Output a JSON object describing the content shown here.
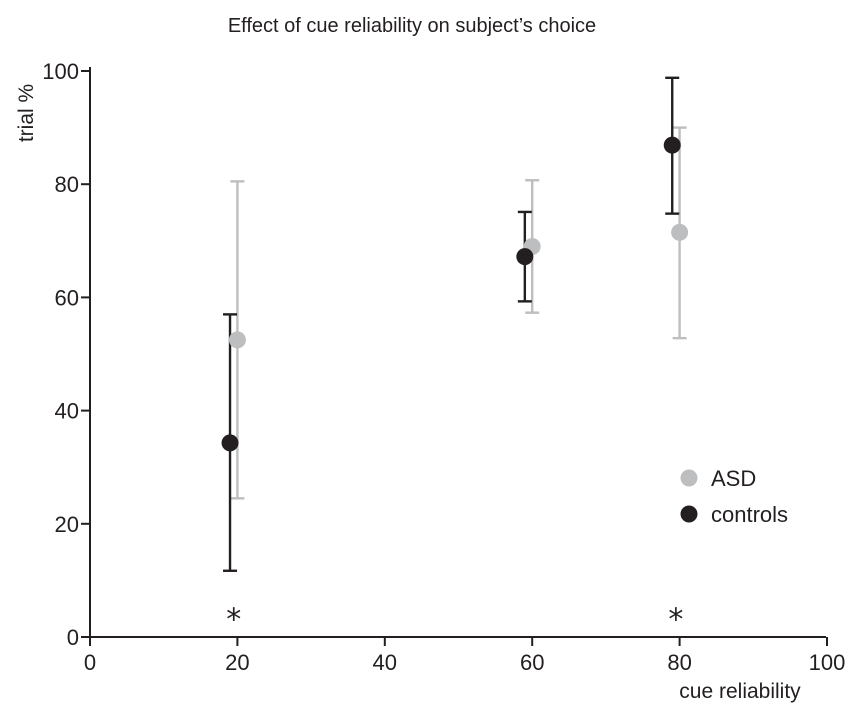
{
  "chart_data": {
    "type": "scatter",
    "title": "Effect of cue reliability on subject’s choice",
    "xlabel": "cue reliability",
    "ylabel": "trial %",
    "xlim": [
      0,
      100
    ],
    "ylim": [
      0,
      100
    ],
    "x_ticks": [
      "0",
      "20",
      "40",
      "60",
      "80",
      "100"
    ],
    "y_ticks": [
      "0",
      "20",
      "40",
      "60",
      "80",
      "100"
    ],
    "grid": false,
    "legend_position": "right",
    "series": [
      {
        "name": "ASD",
        "color": "#bcbec0",
        "points": [
          {
            "x": 20,
            "y": 52.5,
            "lo": 24.5,
            "hi": 80.5
          },
          {
            "x": 60,
            "y": 69,
            "lo": 57.3,
            "hi": 80.7
          },
          {
            "x": 80,
            "y": 71.5,
            "lo": 52.8,
            "hi": 90
          }
        ]
      },
      {
        "name": "controls",
        "color": "#231f20",
        "points": [
          {
            "x": 19,
            "y": 34.3,
            "lo": 11.7,
            "hi": 57
          },
          {
            "x": 59,
            "y": 67.2,
            "lo": 59.3,
            "hi": 75.1
          },
          {
            "x": 79,
            "y": 86.9,
            "lo": 74.8,
            "hi": 98.8
          }
        ]
      }
    ],
    "annotations": [
      {
        "text": "*",
        "x": 19.5,
        "y": 5
      },
      {
        "text": "*",
        "x": 79.5,
        "y": 5
      }
    ]
  }
}
